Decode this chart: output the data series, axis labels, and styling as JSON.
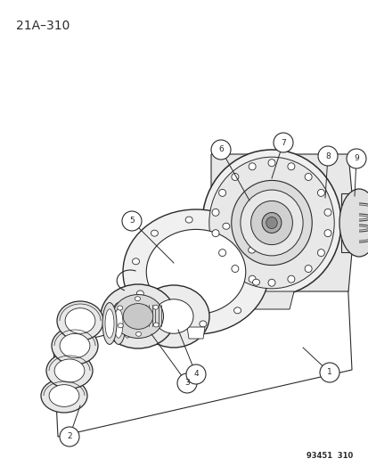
{
  "page_code": "21A–310",
  "figure_code": "93451  310",
  "bg_color": "#ffffff",
  "lc": "#2a2a2a",
  "lw": 1.0,
  "title_fontsize": 10,
  "label_fontsize": 6.5,
  "figcode_fontsize": 6.0
}
